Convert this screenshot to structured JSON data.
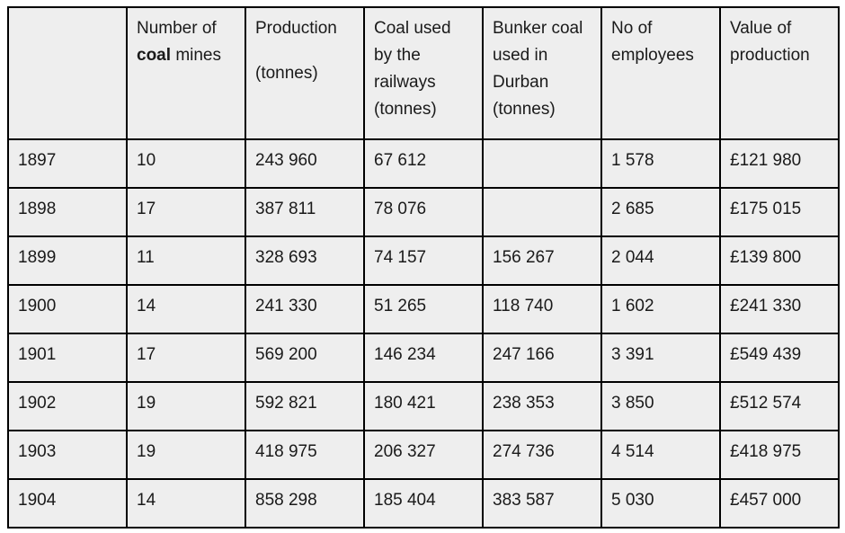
{
  "headers": {
    "year": "",
    "mines": {
      "before": "Number of",
      "bold": "coal",
      "after": "mines"
    },
    "production": {
      "line1": "Production",
      "line2": "(tonnes)"
    },
    "railways": [
      "Coal used",
      "by the",
      "railways",
      "(tonnes)"
    ],
    "bunker": [
      "Bunker coal",
      "used in",
      "Durban",
      "(tonnes)"
    ],
    "employees": [
      "No of",
      "employees"
    ],
    "value": [
      "Value of",
      "production"
    ]
  },
  "rows": [
    [
      "1897",
      "10",
      "243 960",
      "67 612",
      "",
      "1 578",
      "£121 980"
    ],
    [
      "1898",
      "17",
      "387 811",
      "78 076",
      "",
      "2 685",
      "£175 015"
    ],
    [
      "1899",
      "11",
      "328 693",
      "74 157",
      "156 267",
      "2 044",
      "£139 800"
    ],
    [
      "1900",
      "14",
      "241 330",
      "51 265",
      "118 740",
      "1 602",
      "£241 330"
    ],
    [
      "1901",
      "17",
      "569 200",
      "146 234",
      "247 166",
      "3 391",
      "£549 439"
    ],
    [
      "1902",
      "19",
      "592 821",
      "180 421",
      "238 353",
      "3 850",
      "£512 574"
    ],
    [
      "1903",
      "19",
      "418 975",
      "206 327",
      "274 736",
      "4 514",
      "£418 975"
    ],
    [
      "1904",
      "14",
      "858 298",
      "185 404",
      "383 587",
      "5 030",
      "£457 000"
    ]
  ]
}
